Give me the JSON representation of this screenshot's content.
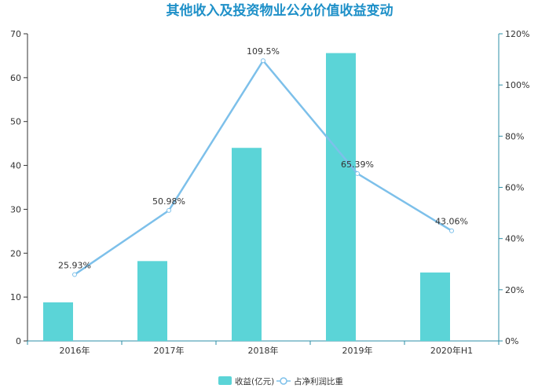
{
  "colors": {
    "title": "#1E90C8",
    "bar": "#5BD4D7",
    "line": "#7DC0EA",
    "axis": "#333333",
    "right_axis": "#2E8FA7",
    "label": "#333333"
  },
  "chart_data": {
    "type": "bar",
    "title": "其他收入及投资物业公允价值收益变动",
    "categories": [
      "2016年",
      "2017年",
      "2018年",
      "2019年",
      "2020年H1"
    ],
    "series": [
      {
        "name": "收益(亿元)",
        "type": "bar",
        "axis": "left",
        "values": [
          8.8,
          18.2,
          44.0,
          65.6,
          15.6
        ]
      },
      {
        "name": "占净利润比重",
        "type": "line",
        "axis": "right",
        "values": [
          25.93,
          50.98,
          109.5,
          65.39,
          43.06
        ],
        "labels": [
          "25.93%",
          "50.98%",
          "109.5%",
          "65.39%",
          "43.06%"
        ]
      }
    ],
    "y_left": {
      "min": 0,
      "max": 70,
      "ticks": [
        "0",
        "10",
        "20",
        "30",
        "40",
        "50",
        "60",
        "70"
      ]
    },
    "y_right": {
      "min": 0,
      "max": 120,
      "ticks": [
        "0%",
        "20%",
        "40%",
        "60%",
        "80%",
        "100%",
        "120%"
      ]
    },
    "grid": false,
    "legend_position": "bottom-center"
  }
}
